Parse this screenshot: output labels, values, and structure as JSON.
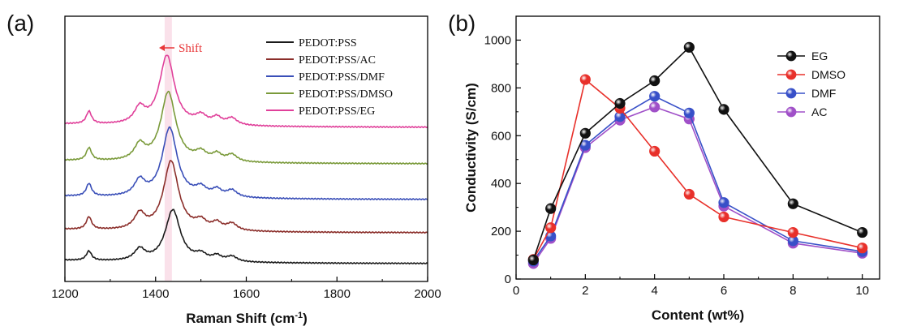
{
  "chart_data": [
    {
      "panel_label": "(a)",
      "type": "line",
      "title": "",
      "xlabel": "Raman Shift (cm",
      "xlabel_sup": "-1",
      "xlabel_close": ")",
      "ylabel": "",
      "xlim": [
        1200,
        2000
      ],
      "xticks": [
        1200,
        1400,
        1600,
        1800,
        2000
      ],
      "yticks_shown": false,
      "annotation": {
        "text": "Shift",
        "color": "#e8383a",
        "band_x": [
          1420,
          1436
        ]
      },
      "series": [
        {
          "name": "PEDOT:PSS",
          "color": "#1a1a1a",
          "offset": 0,
          "peak_x": 1438,
          "peak_h": 64
        },
        {
          "name": "PEDOT:PSS/AC",
          "color": "#8b2e2a",
          "offset": 38,
          "peak_x": 1434,
          "peak_h": 86
        },
        {
          "name": "PEDOT:PSS/DMF",
          "color": "#3a4fb8",
          "offset": 79,
          "peak_x": 1431,
          "peak_h": 86
        },
        {
          "name": "PEDOT:PSS/DMSO",
          "color": "#7a9a3a",
          "offset": 123,
          "peak_x": 1428,
          "peak_h": 86
        },
        {
          "name": "PEDOT:PSS/EG",
          "color": "#e0409a",
          "offset": 168,
          "peak_x": 1425,
          "peak_h": 86
        }
      ]
    },
    {
      "panel_label": "(b)",
      "type": "line",
      "title": "",
      "xlabel": "Content (wt%)",
      "ylabel": "Conductivity (S/cm)",
      "xlim": [
        0,
        10.5
      ],
      "ylim": [
        0,
        1100
      ],
      "xticks": [
        0,
        2,
        4,
        6,
        8,
        10
      ],
      "yticks": [
        0,
        200,
        400,
        600,
        800,
        1000
      ],
      "x": [
        0.5,
        1,
        2,
        3,
        4,
        5,
        6,
        8,
        10
      ],
      "series": [
        {
          "name": "EG",
          "color": "#111111",
          "values": [
            80,
            295,
            610,
            735,
            830,
            970,
            710,
            315,
            195
          ]
        },
        {
          "name": "DMSO",
          "color": "#e8302a",
          "values": [
            82,
            215,
            835,
            715,
            535,
            355,
            260,
            195,
            130
          ]
        },
        {
          "name": "DMF",
          "color": "#3850c8",
          "values": [
            75,
            180,
            560,
            680,
            765,
            695,
            320,
            160,
            115
          ]
        },
        {
          "name": "AC",
          "color": "#a050c8",
          "values": [
            65,
            170,
            550,
            665,
            720,
            670,
            305,
            150,
            108
          ]
        }
      ]
    }
  ]
}
